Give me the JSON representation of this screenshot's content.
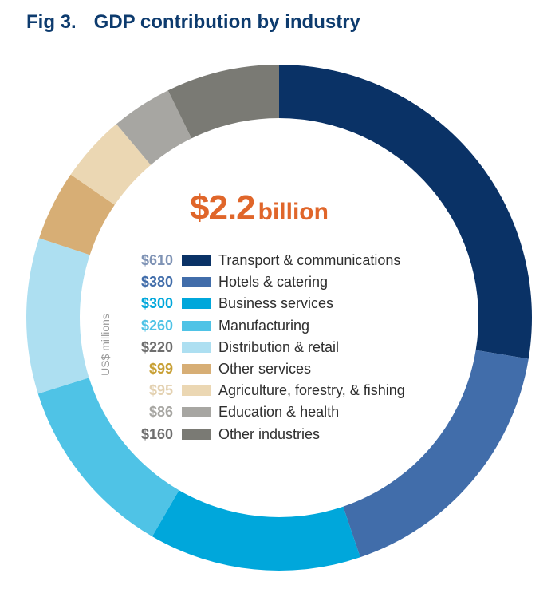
{
  "header": {
    "fig_label": "Fig 3.",
    "title": "GDP contribution by industry"
  },
  "total": {
    "amount": "$2.2",
    "unit": "billion"
  },
  "axis_note": "US$ millions",
  "chart_data": {
    "type": "pie",
    "variant": "donut",
    "title": "GDP contribution by industry",
    "unit": "US$ millions",
    "center_label": "$2.2 billion",
    "segments": [
      {
        "label": "Transport & communications",
        "value": 610,
        "display": "$610",
        "color": "#0a3266",
        "value_color": "#7f93b5"
      },
      {
        "label": "Hotels & catering",
        "value": 380,
        "display": "$380",
        "color": "#416daa",
        "value_color": "#416daa"
      },
      {
        "label": "Business services",
        "value": 300,
        "display": "$300",
        "color": "#00a7db",
        "value_color": "#00a7db"
      },
      {
        "label": "Manufacturing",
        "value": 260,
        "display": "$260",
        "color": "#4fc3e6",
        "value_color": "#4fc3e6"
      },
      {
        "label": "Distribution & retail",
        "value": 220,
        "display": "$220",
        "color": "#addff1",
        "value_color": "#6e6e6e"
      },
      {
        "label": "Other services",
        "value": 99,
        "display": "$99",
        "color": "#d7ae75",
        "value_color": "#c8a035"
      },
      {
        "label": "Agriculture, forestry, & fishing",
        "value": 95,
        "display": "$95",
        "color": "#ebd7b3",
        "value_color": "#e3d1b1"
      },
      {
        "label": "Education & health",
        "value": 86,
        "display": "$86",
        "color": "#a7a6a2",
        "value_color": "#a7a6a2"
      },
      {
        "label": "Other industries",
        "value": 160,
        "display": "$160",
        "color": "#7a7a74",
        "value_color": "#6e6e6e"
      }
    ]
  }
}
